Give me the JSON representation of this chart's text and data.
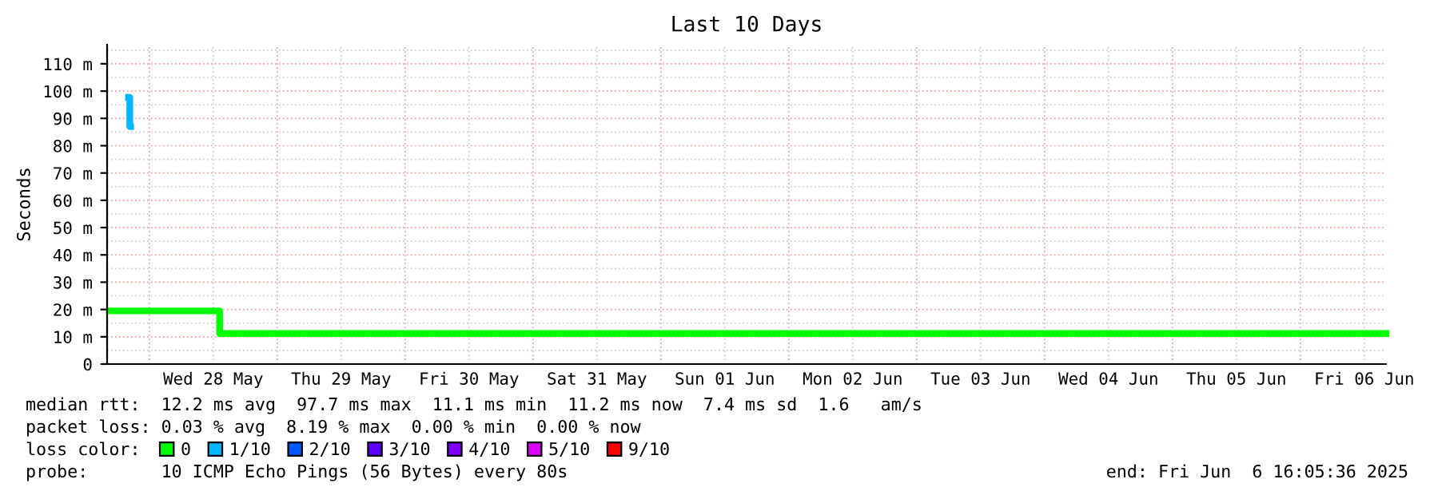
{
  "chart_data": {
    "type": "line",
    "title": "Last 10 Days",
    "ylabel": "Seconds",
    "legend_title": "loss color:",
    "series": [
      {
        "name": "0",
        "color": "#00ff00",
        "x": [
          "2025-05-27T16:30",
          "2025-05-28T13:12",
          "2025-05-28T13:12",
          "2025-06-06T16:05"
        ],
        "values": [
          19.5,
          19.5,
          11.2,
          11.2
        ]
      },
      {
        "name": "1/10",
        "color": "#00b8ff",
        "x": [
          "2025-05-27T20:06",
          "2025-05-27T20:20",
          "2025-05-27T20:20",
          "2025-05-27T20:30"
        ],
        "values": [
          97.7,
          97.7,
          87,
          87
        ]
      },
      {
        "name": "2/10",
        "color": "#0059ff"
      },
      {
        "name": "3/10",
        "color": "#5e00ff"
      },
      {
        "name": "4/10",
        "color": "#7e00ff"
      },
      {
        "name": "5/10",
        "color": "#dd00ff"
      },
      {
        "name": "9/10",
        "color": "#ff0000"
      }
    ],
    "xlim": [
      "2025-05-27T16:05",
      "2025-06-06T16:05"
    ],
    "xticks": [
      {
        "value": "2025-05-28",
        "label": null
      },
      {
        "value": "2025-05-28T12:00",
        "label": "Wed 28 May"
      },
      {
        "value": "2025-05-29",
        "label": null
      },
      {
        "value": "2025-05-29T12:00",
        "label": "Thu 29 May"
      },
      {
        "value": "2025-05-30",
        "label": null
      },
      {
        "value": "2025-05-30T12:00",
        "label": "Fri 30 May"
      },
      {
        "value": "2025-05-31",
        "label": null
      },
      {
        "value": "2025-05-31T12:00",
        "label": "Sat 31 May"
      },
      {
        "value": "2025-06-01",
        "label": null
      },
      {
        "value": "2025-06-01T12:00",
        "label": "Sun 01 Jun"
      },
      {
        "value": "2025-06-02",
        "label": null
      },
      {
        "value": "2025-06-02T12:00",
        "label": "Mon 02 Jun"
      },
      {
        "value": "2025-06-03",
        "label": null
      },
      {
        "value": "2025-06-03T12:00",
        "label": "Tue 03 Jun"
      },
      {
        "value": "2025-06-04",
        "label": null
      },
      {
        "value": "2025-06-04T12:00",
        "label": "Wed 04 Jun"
      },
      {
        "value": "2025-06-05",
        "label": null
      },
      {
        "value": "2025-06-05T12:00",
        "label": "Thu 05 Jun"
      },
      {
        "value": "2025-06-06",
        "label": null
      },
      {
        "value": "2025-06-06T12:00",
        "label": "Fri 06 Jun"
      }
    ],
    "ylim": [
      0,
      117
    ],
    "yticks": [
      0,
      {
        "value": 10,
        "label": "10 m"
      },
      {
        "value": 20,
        "label": "20 m"
      },
      {
        "value": 30,
        "label": "30 m"
      },
      {
        "value": 40,
        "label": "40 m"
      },
      {
        "value": 50,
        "label": "50 m"
      },
      {
        "value": 60,
        "label": "60 m"
      },
      {
        "value": 70,
        "label": "70 m"
      },
      {
        "value": 80,
        "label": "80 m"
      },
      {
        "value": 90,
        "label": "90 m"
      },
      {
        "value": 100,
        "label": "100 m"
      },
      {
        "value": 110,
        "label": "110 m"
      }
    ],
    "grid": true,
    "legend": "bottom",
    "annotations": [
      "median rtt:  12.2 ms avg  97.7 ms max  11.1 ms min  11.2 ms now  7.4 ms sd  1.6   am/s",
      "packet loss: 0.03 % avg  8.19 % max  0.00 % min  0.00 % now",
      "probe:       10 ICMP Echo Pings (56 Bytes) every 80s",
      "end: Fri Jun  6 16:05:36 2025"
    ]
  }
}
